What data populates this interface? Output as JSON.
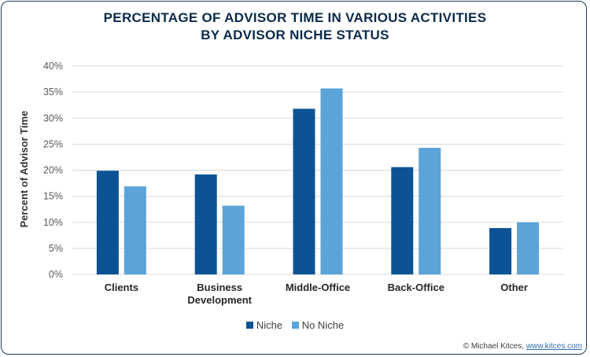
{
  "title_line1": "PERCENTAGE OF ADVISOR TIME IN VARIOUS ACTIVITIES",
  "title_line2": "BY ADVISOR NICHE STATUS",
  "credit_text": "© Michael Kitces, ",
  "credit_link": "www.kitces.com",
  "colors": {
    "niche": "#0b5394",
    "no_niche": "#5ba3d9",
    "grid": "#d9d9d9"
  },
  "chart_data": {
    "type": "bar",
    "title": "PERCENTAGE OF ADVISOR TIME IN VARIOUS ACTIVITIES BY ADVISOR NICHE STATUS",
    "ylabel": "Percent of Advisor Time",
    "xlabel": "",
    "ylim": [
      0,
      40
    ],
    "ytick_step": 5,
    "yticks": [
      "0%",
      "5%",
      "10%",
      "15%",
      "20%",
      "25%",
      "30%",
      "35%",
      "40%"
    ],
    "categories": [
      [
        "Clients"
      ],
      [
        "Business",
        "Development"
      ],
      [
        "Middle-Office"
      ],
      [
        "Back-Office"
      ],
      [
        "Other"
      ]
    ],
    "series": [
      {
        "name": "Niche",
        "values": [
          19.9,
          19.2,
          31.8,
          20.6,
          8.9
        ]
      },
      {
        "name": "No Niche",
        "values": [
          16.9,
          13.2,
          35.7,
          24.3,
          10.0
        ]
      }
    ],
    "grid": true,
    "legend": "bottom"
  }
}
